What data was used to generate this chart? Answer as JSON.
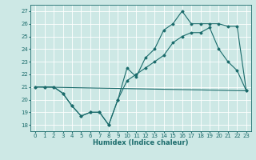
{
  "xlabel": "Humidex (Indice chaleur)",
  "bg_color": "#cde8e5",
  "grid_color": "#ffffff",
  "line_color": "#1a6b6b",
  "xlim": [
    -0.5,
    23.5
  ],
  "ylim": [
    17.5,
    27.5
  ],
  "xticks": [
    0,
    1,
    2,
    3,
    4,
    5,
    6,
    7,
    8,
    9,
    10,
    11,
    12,
    13,
    14,
    15,
    16,
    17,
    18,
    19,
    20,
    21,
    22,
    23
  ],
  "yticks": [
    18,
    19,
    20,
    21,
    22,
    23,
    24,
    25,
    26,
    27
  ],
  "line1_x": [
    0,
    1,
    2,
    3,
    4,
    5,
    6,
    7,
    8,
    9,
    10,
    11,
    12,
    13,
    14,
    15,
    16,
    17,
    18,
    19,
    20,
    21,
    22,
    23
  ],
  "line1_y": [
    21,
    21,
    21,
    20.5,
    19.5,
    18.7,
    19,
    19,
    18,
    20,
    21.5,
    22,
    22.5,
    23,
    23.5,
    24.5,
    25,
    25.3,
    25.3,
    25.7,
    24,
    23,
    22.3,
    20.7
  ],
  "line2_x": [
    0,
    23
  ],
  "line2_y": [
    21,
    20.7
  ],
  "line3_x": [
    0,
    1,
    2,
    3,
    4,
    5,
    6,
    7,
    8,
    9,
    10,
    11,
    12,
    13,
    14,
    15,
    16,
    17,
    18,
    19,
    20,
    21,
    22,
    23
  ],
  "line3_y": [
    21,
    21,
    21,
    20.5,
    19.5,
    18.7,
    19,
    19,
    18,
    20,
    22.5,
    21.8,
    23.3,
    24,
    25.5,
    26,
    27,
    26,
    26,
    26,
    26,
    25.8,
    25.8,
    20.7
  ],
  "tick_fontsize": 5,
  "xlabel_fontsize": 6,
  "marker_size": 1.5,
  "line_width": 0.8
}
